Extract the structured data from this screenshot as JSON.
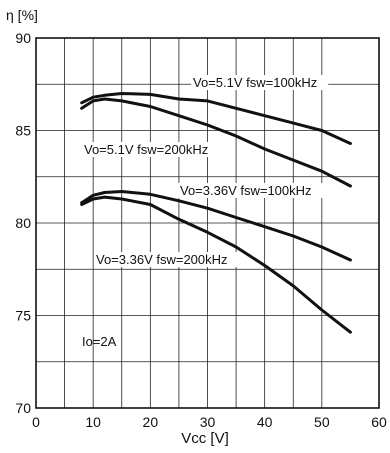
{
  "chart_data": {
    "type": "line",
    "ylabel": "η [%]",
    "xlabel": "Vcc [V]",
    "xlim": [
      0,
      60
    ],
    "ylim": [
      70,
      90
    ],
    "x_ticks": [
      "0",
      "10",
      "20",
      "30",
      "40",
      "50",
      "60"
    ],
    "y_ticks": [
      "70",
      "75",
      "80",
      "85",
      "90"
    ],
    "grid": true,
    "series": [
      {
        "name": "Vo=5.1V fsw=100kHz",
        "x": [
          8,
          10,
          12,
          15,
          20,
          25,
          30,
          35,
          40,
          45,
          50,
          55
        ],
        "y": [
          86.5,
          86.8,
          86.9,
          87.0,
          86.95,
          86.7,
          86.6,
          86.2,
          85.8,
          85.4,
          85.0,
          84.3
        ]
      },
      {
        "name": "Vo=5.1V fsw=200kHz",
        "x": [
          8,
          10,
          12,
          15,
          20,
          25,
          30,
          35,
          40,
          45,
          50,
          55
        ],
        "y": [
          86.2,
          86.6,
          86.7,
          86.6,
          86.3,
          85.8,
          85.3,
          84.7,
          84.0,
          83.4,
          82.8,
          82.0
        ]
      },
      {
        "name": "Vo=3.36V fsw=100kHz",
        "x": [
          8,
          10,
          12,
          15,
          20,
          25,
          30,
          35,
          40,
          45,
          50,
          55
        ],
        "y": [
          81.1,
          81.5,
          81.65,
          81.7,
          81.55,
          81.2,
          80.8,
          80.3,
          79.8,
          79.3,
          78.7,
          78.0
        ]
      },
      {
        "name": "Vo=3.36V fsw=200kHz",
        "x": [
          8,
          10,
          12,
          15,
          20,
          25,
          30,
          35,
          40,
          45,
          50,
          55
        ],
        "y": [
          81.0,
          81.3,
          81.4,
          81.3,
          81.0,
          80.2,
          79.5,
          78.7,
          77.7,
          76.6,
          75.3,
          74.1
        ]
      }
    ],
    "series_labels": [
      {
        "text": "Vo=5.1V fsw=100kHz"
      },
      {
        "text": "Vo=5.1V fsw=200kHz"
      },
      {
        "text": "Vo=3.36V fsw=100kHz"
      },
      {
        "text": "Vo=3.36V fsw=200kHz"
      }
    ],
    "annotations": [
      {
        "text": "Io=2A"
      }
    ]
  }
}
